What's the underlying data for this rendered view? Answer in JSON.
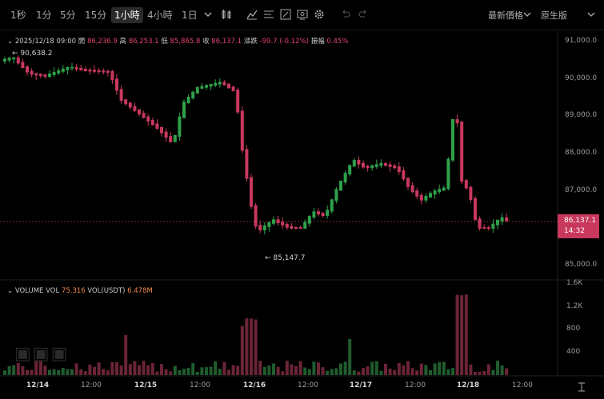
{
  "toolbar": {
    "timeframes": [
      "1秒",
      "1分",
      "5分",
      "15分",
      "1小時",
      "4小時",
      "1日"
    ],
    "active_timeframe": "1小時",
    "price_type": "最新價格",
    "chart_style": "原生版"
  },
  "ohlc": {
    "date": "2025/12/18 09:00",
    "open_label": "開",
    "open": "86,236.9",
    "high_label": "高",
    "high": "86,253.1",
    "low_label": "低",
    "low": "85,865.8",
    "close_label": "收",
    "close": "86,137.1",
    "change_label": "漲跌",
    "change": "-99.7 (-0.12%)",
    "amp_label": "振幅",
    "amp": "0.45%"
  },
  "volume_legend": {
    "title": "VOLUME",
    "vol_label": "VOL",
    "vol": "75.316",
    "usdt_label": "VOL(USDT)",
    "usdt": "6.478M"
  },
  "price_axis": [
    "91,000.0",
    "90,000.0",
    "89,000.0",
    "88,000.0",
    "87,000.0",
    "85,000.0"
  ],
  "volume_axis": [
    "1.6K",
    "1.2K",
    "800",
    "400"
  ],
  "current_price": {
    "price": "86,137.1",
    "countdown": "14:32"
  },
  "annotations": {
    "high": "90,638.2",
    "low": "85,147.7"
  },
  "x_axis": [
    "12/14",
    "12:00",
    "12/15",
    "12:00",
    "12/16",
    "12:00",
    "12/17",
    "12:00",
    "12/18",
    "12:00"
  ],
  "colors": {
    "up": "#2fa04a",
    "down": "#c8385d",
    "background": "#000000",
    "badge": "#c8385d"
  }
}
